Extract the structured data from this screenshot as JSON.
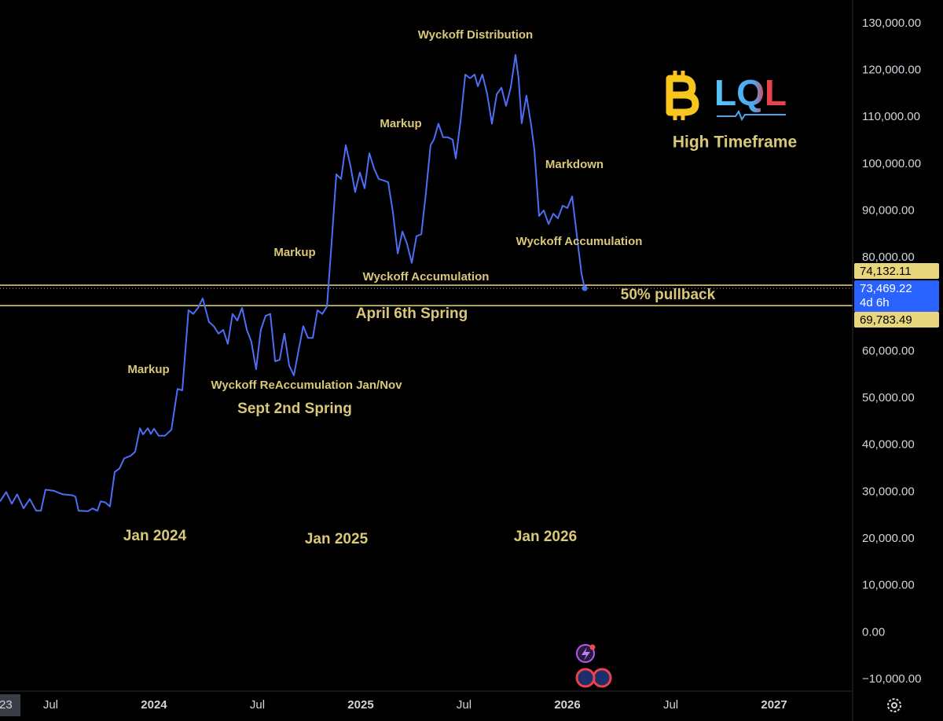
{
  "chart_data": {
    "type": "line",
    "color": "#4d6ef5",
    "x": [
      2023.255,
      2023.285,
      2023.312,
      2023.338,
      2023.369,
      2023.399,
      2023.43,
      2023.453,
      2023.475,
      2023.513,
      2023.559,
      2023.605,
      2023.62,
      2023.635,
      2023.681,
      2023.703,
      2023.726,
      2023.742,
      2023.764,
      2023.787,
      2023.81,
      2023.833,
      2023.856,
      2023.886,
      2023.909,
      2023.932,
      2023.947,
      2023.97,
      2023.985,
      2024.0,
      2024.023,
      2024.053,
      2024.084,
      2024.114,
      2024.137,
      2024.167,
      2024.19,
      2024.213,
      2024.236,
      2024.266,
      2024.289,
      2024.312,
      2024.335,
      2024.357,
      2024.38,
      2024.403,
      2024.426,
      2024.449,
      2024.471,
      2024.494,
      2024.517,
      2024.54,
      2024.563,
      2024.586,
      2024.608,
      2024.631,
      2024.654,
      2024.677,
      2024.7,
      2024.722,
      2024.745,
      2024.768,
      2024.791,
      2024.814,
      2024.837,
      2024.859,
      2024.882,
      2024.905,
      2024.928,
      2024.951,
      2024.973,
      2024.996,
      2025.019,
      2025.042,
      2025.065,
      2025.087,
      2025.11,
      2025.133,
      2025.156,
      2025.179,
      2025.202,
      2025.224,
      2025.247,
      2025.27,
      2025.293,
      2025.316,
      2025.338,
      2025.354,
      2025.376,
      2025.399,
      2025.422,
      2025.445,
      2025.46,
      2025.483,
      2025.506,
      2025.529,
      2025.551,
      2025.567,
      2025.589,
      2025.612,
      2025.635,
      2025.658,
      2025.681,
      2025.703,
      2025.726,
      2025.749,
      2025.764,
      2025.779,
      2025.802,
      2025.825,
      2025.84,
      2025.863,
      2025.886,
      2025.909,
      2025.932,
      2025.954,
      2025.977,
      2026.0,
      2026.023,
      2026.046,
      2026.068,
      2026.084
    ],
    "values": [
      28000,
      30000,
      27500,
      29500,
      26500,
      28500,
      26000,
      26000,
      30500,
      30300,
      29500,
      29300,
      29000,
      26000,
      25900,
      26500,
      26000,
      28000,
      27800,
      26900,
      34300,
      35000,
      37200,
      37700,
      38600,
      43600,
      42300,
      43600,
      42400,
      43500,
      42000,
      42000,
      43300,
      52000,
      51700,
      68800,
      68000,
      69300,
      71300,
      66300,
      65400,
      63800,
      64600,
      61600,
      68000,
      66600,
      69300,
      64600,
      62100,
      56200,
      64600,
      67600,
      68000,
      57900,
      58200,
      63800,
      57000,
      54900,
      60400,
      65400,
      62900,
      62900,
      68800,
      68000,
      69600,
      83000,
      97800,
      96800,
      104000,
      99500,
      94000,
      98200,
      94800,
      102300,
      99000,
      96800,
      96500,
      96100,
      89700,
      80900,
      85600,
      83000,
      78900,
      84600,
      85000,
      94000,
      104000,
      105200,
      108600,
      105700,
      105700,
      105200,
      101200,
      109100,
      119100,
      118300,
      119100,
      116600,
      119100,
      114900,
      108600,
      114900,
      116300,
      112400,
      116300,
      123300,
      118300,
      108700,
      114600,
      108200,
      103200,
      88900,
      90100,
      87200,
      89400,
      88400,
      91100,
      90600,
      93100,
      84700,
      76700,
      73469.22
    ],
    "xlim": [
      2023.255,
      2027.38
    ],
    "ylim": [
      135000,
      -12500
    ],
    "xticks": [
      {
        "value": 2023,
        "label": "23"
      },
      {
        "value": 2023.5,
        "label": "Jul"
      },
      2024,
      {
        "value": 2024.5,
        "label": "Jul"
      },
      2025,
      {
        "value": 2025.5,
        "label": "Jul"
      },
      2026,
      {
        "value": 2026.5,
        "label": "Jul"
      },
      2027
    ],
    "yticks": [
      {
        "value": 130000,
        "label": "130,000.00"
      },
      {
        "value": 120000,
        "label": "120,000.00"
      },
      {
        "value": 110000,
        "label": "110,000.00"
      },
      {
        "value": 100000,
        "label": "100,000.00"
      },
      {
        "value": 90000,
        "label": "90,000.00"
      },
      {
        "value": 80000,
        "label": "80,000.00"
      },
      {
        "value": 60000,
        "label": "60,000.00"
      },
      {
        "value": 50000,
        "label": "50,000.00"
      },
      {
        "value": 40000,
        "label": "40,000.00"
      },
      {
        "value": 30000,
        "label": "30,000.00"
      },
      {
        "value": 20000,
        "label": "20,000.00"
      },
      {
        "value": 10000,
        "label": "10,000.00"
      },
      {
        "value": 0,
        "label": "0.00"
      },
      {
        "value": -10000,
        "label": "−10,000.00"
      }
    ],
    "levels": [
      {
        "value": 74132.11,
        "label": "74,132.11"
      },
      {
        "value": 69783.49,
        "label": "69,783.49"
      }
    ],
    "level_color": "#e8d67c",
    "last_price": {
      "value": 73469.22,
      "label": "73,469.22",
      "countdown": "4d 6h"
    },
    "annotations": [
      "Wyckoff Distribution",
      "Markup",
      "Markdown",
      "Wyckoff Accumulation",
      "Markup",
      "Wyckoff Accumulation",
      "50% pullback",
      "April 6th Spring",
      "Markup",
      "Wyckoff ReAccumulation Jan/Nov",
      "Sept 2nd Spring",
      "Jan 2024",
      "Jan 2025",
      "Jan 2026",
      "High Timeframe"
    ],
    "logo": "LQL"
  }
}
